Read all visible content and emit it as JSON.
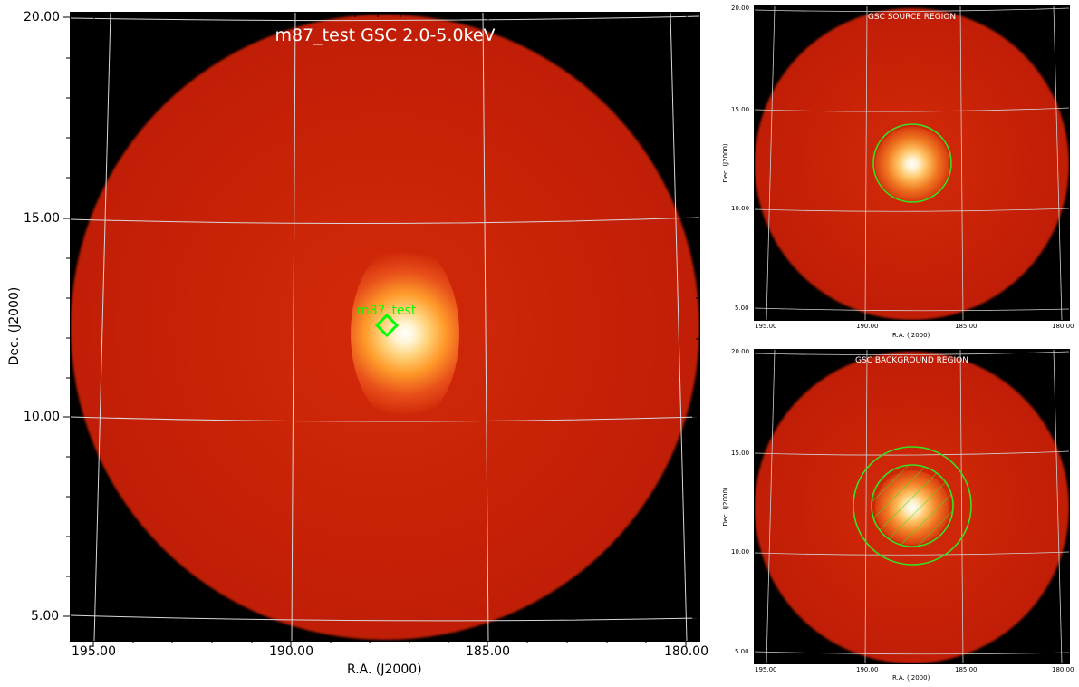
{
  "main": {
    "title": "m87_test GSC 2.0-5.0keV",
    "xlabel": "R.A. (J2000)",
    "ylabel": "Dec. (J2000)",
    "x_ticks": [
      "195.00",
      "190.00",
      "185.00",
      "180.00"
    ],
    "y_ticks": [
      "20.00",
      "15.00",
      "10.00",
      "5.00"
    ],
    "source_label": "m87_test"
  },
  "source_region": {
    "title": "GSC SOURCE REGION",
    "xlabel": "R.A. (J2000)",
    "ylabel": "Dec. (J2000)",
    "x_ticks": [
      "195.00",
      "190.00",
      "185.00",
      "180.00"
    ],
    "y_ticks": [
      "20.00",
      "15.00",
      "10.00",
      "5.00"
    ]
  },
  "background_region": {
    "title": "GSC BACKGROUND REGION",
    "xlabel": "R.A. (J2000)",
    "ylabel": "Dec. (J2000)",
    "x_ticks": [
      "195.00",
      "190.00",
      "185.00",
      "180.00"
    ],
    "y_ticks": [
      "20.00",
      "15.00",
      "10.00",
      "5.00"
    ]
  },
  "colors": {
    "background": "#000000",
    "disk": "#c52007",
    "region": "#00ff00",
    "grid": "#d8d8d8"
  }
}
